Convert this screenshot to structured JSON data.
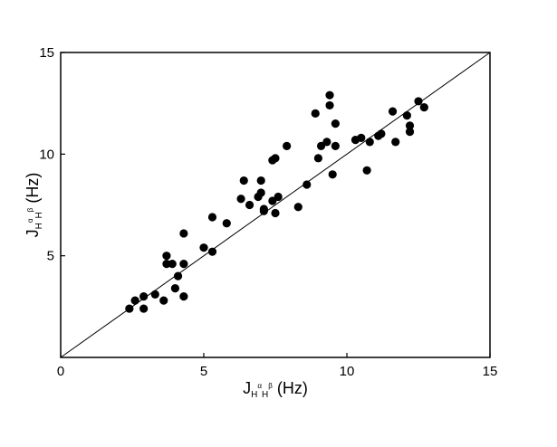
{
  "chart_data": {
    "type": "scatter",
    "title": "",
    "xlabel": {
      "base": "J",
      "sub1": "H",
      "sup1": "α",
      "sub2": "H",
      "sup2": "β",
      "unit": " (Hz)"
    },
    "ylabel": {
      "base": "J",
      "sub1": "H",
      "sup1": "α",
      "sub2": "H",
      "sup2": "β",
      "unit": " (Hz)"
    },
    "xlim": [
      0,
      15
    ],
    "ylim": [
      0,
      15
    ],
    "x_ticks": [
      {
        "value": 0,
        "label": "0"
      },
      {
        "value": 5,
        "label": "5"
      },
      {
        "value": 10,
        "label": "10"
      },
      {
        "value": 15,
        "label": "15"
      }
    ],
    "y_ticks": [
      {
        "value": 5,
        "label": "5"
      },
      {
        "value": 10,
        "label": "10"
      },
      {
        "value": 15,
        "label": "15"
      }
    ],
    "grid": false,
    "reference_line": {
      "from": [
        0,
        0
      ],
      "to": [
        15,
        15
      ]
    },
    "marker_color": "#000000",
    "series": [
      {
        "points": [
          [
            2.4,
            2.4
          ],
          [
            2.6,
            2.8
          ],
          [
            2.9,
            3.0
          ],
          [
            2.9,
            2.4
          ],
          [
            3.3,
            3.1
          ],
          [
            3.6,
            2.8
          ],
          [
            3.7,
            5.0
          ],
          [
            3.7,
            4.6
          ],
          [
            3.9,
            4.6
          ],
          [
            4.0,
            3.4
          ],
          [
            4.1,
            4.0
          ],
          [
            4.3,
            3.0
          ],
          [
            4.3,
            4.6
          ],
          [
            4.3,
            6.1
          ],
          [
            5.0,
            5.4
          ],
          [
            5.3,
            6.9
          ],
          [
            5.3,
            5.2
          ],
          [
            5.8,
            6.6
          ],
          [
            6.3,
            7.8
          ],
          [
            6.4,
            8.7
          ],
          [
            6.6,
            7.5
          ],
          [
            6.9,
            7.9
          ],
          [
            7.0,
            8.1
          ],
          [
            7.0,
            8.7
          ],
          [
            7.1,
            7.3
          ],
          [
            7.1,
            7.2
          ],
          [
            7.4,
            7.7
          ],
          [
            7.4,
            9.7
          ],
          [
            7.5,
            7.1
          ],
          [
            7.5,
            9.8
          ],
          [
            7.6,
            7.9
          ],
          [
            7.9,
            10.4
          ],
          [
            8.3,
            7.4
          ],
          [
            8.6,
            8.5
          ],
          [
            8.9,
            12.0
          ],
          [
            9.0,
            9.8
          ],
          [
            9.1,
            10.4
          ],
          [
            9.3,
            10.6
          ],
          [
            9.4,
            12.4
          ],
          [
            9.4,
            12.9
          ],
          [
            9.5,
            9.0
          ],
          [
            9.6,
            11.5
          ],
          [
            9.6,
            10.4
          ],
          [
            10.3,
            10.7
          ],
          [
            10.5,
            10.8
          ],
          [
            10.7,
            9.2
          ],
          [
            10.8,
            10.6
          ],
          [
            11.1,
            10.9
          ],
          [
            11.2,
            11.0
          ],
          [
            11.6,
            12.1
          ],
          [
            11.7,
            10.6
          ],
          [
            12.1,
            11.9
          ],
          [
            12.2,
            11.1
          ],
          [
            12.2,
            11.4
          ],
          [
            12.5,
            12.6
          ],
          [
            12.7,
            12.3
          ]
        ]
      }
    ]
  }
}
